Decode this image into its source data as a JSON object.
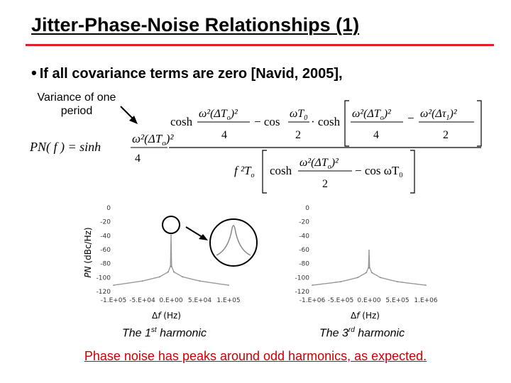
{
  "slide": {
    "title": "Jitter-Phase-Noise Relationships (1)",
    "bullet": "If all covariance terms are zero [Navid, 2005],",
    "note": "Variance of one period",
    "conclusion": "Phase noise has peaks around odd harmonics, as expected."
  },
  "equation": {
    "lhs": "PN( f ) = sinh",
    "num_cosh": "cosh",
    "num_minus_cos": "− cos",
    "num_cosh_dot": "· cosh",
    "num_frac_a": "ω²(ΔT",
    "num_frac_b": "ωT",
    "den_4": "4",
    "den_2": "2",
    "den_f2To": "f ²T",
    "den_cosh": "cosh",
    "den_minus_cos": "− cos ωT"
  },
  "plots": {
    "ylabel_italic": "PN",
    "ylabel_rest": " (dBc/Hz)",
    "xlabel_delta": "Δ",
    "xlabel_f": "f",
    "xlabel_unit": " (Hz)",
    "harmonic_1": {
      "prefix": "The 1",
      "sup": "st",
      "suffix": " harmonic"
    },
    "harmonic_3": {
      "prefix": "The 3",
      "sup": "rd",
      "suffix": " harmonic"
    }
  },
  "chart_data": [
    {
      "type": "line",
      "title": "",
      "xlabel": "Δf (Hz)",
      "ylabel": "PN (dBc/Hz)",
      "x_ticks": [
        "-1.E+05",
        "-5.E+04",
        "0.E+00",
        "5.E+04",
        "1.E+05"
      ],
      "y_ticks": [
        "0",
        "-20",
        "-40",
        "-60",
        "-80",
        "-100",
        "-120"
      ],
      "xlim": [
        -100000,
        100000
      ],
      "ylim": [
        -120,
        0
      ],
      "series": [
        {
          "x": [
            -100000,
            -50000,
            -20000,
            -5000,
            -1000,
            0,
            1000,
            5000,
            20000,
            50000,
            100000
          ],
          "values": [
            -112,
            -106,
            -100,
            -93,
            -85,
            -40,
            -85,
            -93,
            -100,
            -106,
            -112
          ]
        }
      ],
      "caption": "The 1st harmonic"
    },
    {
      "type": "line",
      "title": "",
      "xlabel": "Δf (Hz)",
      "ylabel": "",
      "x_ticks": [
        "-1.E+06",
        "-5.E+05",
        "0.E+00",
        "5.E+05",
        "1.E+06"
      ],
      "y_ticks": [
        "0",
        "-20",
        "-40",
        "-60",
        "-80",
        "-100",
        "-120"
      ],
      "xlim": [
        -1000000,
        1000000
      ],
      "ylim": [
        -120,
        0
      ],
      "series": [
        {
          "x": [
            -1000000,
            -500000,
            -200000,
            -50000,
            -10000,
            0,
            10000,
            50000,
            200000,
            500000,
            1000000
          ],
          "values": [
            -112,
            -107,
            -101,
            -94,
            -87,
            -62,
            -87,
            -94,
            -101,
            -107,
            -112
          ]
        }
      ],
      "caption": "The 3rd harmonic"
    }
  ]
}
